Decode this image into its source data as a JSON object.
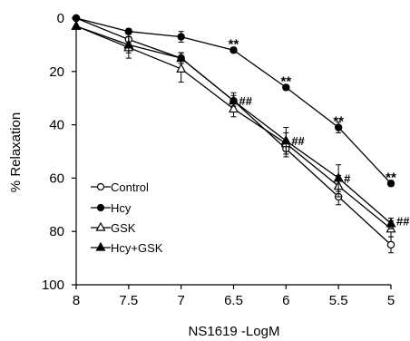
{
  "chart_data": {
    "type": "line",
    "xlabel": "NS1619 -LogM",
    "ylabel": "% Relaxation",
    "x": [
      8,
      7.5,
      7,
      6.5,
      6,
      5.5,
      5
    ],
    "x_ticks": [
      "8",
      "7.5",
      "7",
      "6.5",
      "6",
      "5.5",
      "5"
    ],
    "y_ticks": [
      "0",
      "20",
      "40",
      "60",
      "80",
      "100"
    ],
    "xlim": [
      8,
      5
    ],
    "ylim": [
      0,
      100
    ],
    "y_inverted": true,
    "grid": false,
    "legend_position": "bottom-left",
    "series": [
      {
        "name": "Control",
        "marker": "open-circle",
        "values": [
          0,
          8,
          15,
          31,
          49,
          67,
          85
        ],
        "err": [
          0,
          2,
          2,
          3,
          3,
          3,
          3
        ]
      },
      {
        "name": "Hcy",
        "marker": "filled-circle",
        "values": [
          0,
          5,
          7,
          12,
          26,
          41,
          62
        ],
        "err": [
          0,
          1,
          2,
          1,
          1,
          2,
          1
        ]
      },
      {
        "name": "GSK",
        "marker": "open-triangle",
        "values": [
          3,
          11,
          19,
          34,
          47,
          63,
          79
        ],
        "err": [
          0,
          4,
          5,
          3,
          4,
          4,
          3
        ]
      },
      {
        "name": "Hcy+GSK",
        "marker": "filled-triangle",
        "values": [
          3,
          10,
          15,
          31,
          46,
          60,
          77
        ],
        "err": [
          0,
          3,
          2,
          2,
          5,
          5,
          2
        ]
      }
    ],
    "annotations": [
      {
        "text": "**",
        "x": 6.5,
        "y": 10
      },
      {
        "text": "**",
        "x": 6,
        "y": 24
      },
      {
        "text": "**",
        "x": 5.5,
        "y": 39
      },
      {
        "text": "**",
        "x": 5,
        "y": 60
      },
      {
        "text": "##",
        "x": 6.5,
        "y": 31
      },
      {
        "text": "##",
        "x": 6,
        "y": 46
      },
      {
        "text": "#",
        "x": 5.5,
        "y": 60
      },
      {
        "text": "##",
        "x": 5,
        "y": 76
      }
    ]
  }
}
